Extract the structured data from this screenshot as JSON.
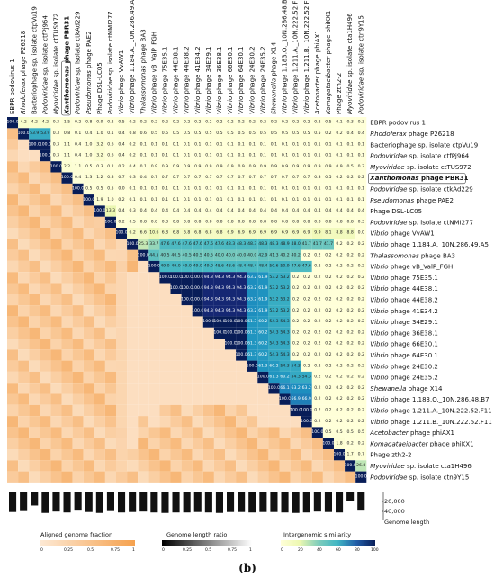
{
  "panel_label": "(b)",
  "legends": {
    "aligned": {
      "title": "Aligned genome fraction",
      "ticks": [
        "0",
        "0.25",
        "0.5",
        "0.75",
        "1"
      ]
    },
    "length_ratio": {
      "title": "Genome length ratio",
      "ticks": [
        "0",
        "0.25",
        "0.5",
        "0.75",
        "1"
      ]
    },
    "intergenomic": {
      "title": "Intergenomic similarity",
      "ticks": [
        "0",
        "20",
        "40",
        "60",
        "80",
        "100"
      ]
    }
  },
  "colors": {
    "orange_low": "#fde9d4",
    "orange_high": "#f5a14e",
    "ylgnbu": [
      "#ffffd9",
      "#edf8b1",
      "#c7e9b4",
      "#7fcdbb",
      "#41b6c4",
      "#1d91c0",
      "#225ea8",
      "#253494",
      "#081d58"
    ]
  },
  "chart_data": {
    "type": "heatmap",
    "genome_length_axis": {
      "label": "Genome length",
      "ticks": [
        "20,000",
        "40,000"
      ]
    },
    "genomes": [
      {
        "prefix": "",
        "italic": "",
        "suffix": "EBPR podovirus 1",
        "boxed": false
      },
      {
        "prefix": "",
        "italic": "Rhodoferax",
        "suffix": " phage P26218",
        "boxed": false
      },
      {
        "prefix": "Bacteriophage sp. isolate ctpVu19",
        "italic": "",
        "suffix": "",
        "boxed": false
      },
      {
        "prefix": "",
        "italic": "Podoviridae",
        "suffix": " sp. isolate ctfPj964",
        "boxed": false
      },
      {
        "prefix": "",
        "italic": "Myoviridae",
        "suffix": " sp. isolate ctTUS972",
        "boxed": false
      },
      {
        "prefix": "",
        "italic": "Xanthomonas",
        "suffix": " phage PBR31",
        "boxed": true
      },
      {
        "prefix": "",
        "italic": "Podoviridae",
        "suffix": " sp. isolate ctkAd229",
        "boxed": false
      },
      {
        "prefix": "",
        "italic": "Pseudomonas",
        "suffix": " phage PAE2",
        "boxed": false
      },
      {
        "prefix": "Phage DSL-LC05",
        "italic": "",
        "suffix": "",
        "boxed": false
      },
      {
        "prefix": "",
        "italic": "Podoviridae",
        "suffix": " sp. isolate ctNMI277",
        "boxed": false
      },
      {
        "prefix": "",
        "italic": "Vibrio",
        "suffix": " phage VvAW1",
        "boxed": false
      },
      {
        "prefix": "",
        "italic": "Vibrio",
        "suffix": " phage 1.184.A._10N.286.49.A5",
        "boxed": false
      },
      {
        "prefix": "",
        "italic": "Thalassomonas",
        "suffix": " phage BA3",
        "boxed": false
      },
      {
        "prefix": "",
        "italic": "Vibrio",
        "suffix": " phage vB_ValP_FGH",
        "boxed": false
      },
      {
        "prefix": "",
        "italic": "Vibrio",
        "suffix": " phage 75E35.1",
        "boxed": false
      },
      {
        "prefix": "",
        "italic": "Vibrio",
        "suffix": " phage 44E38.1",
        "boxed": false
      },
      {
        "prefix": "",
        "italic": "Vibrio",
        "suffix": " phage 44E38.2",
        "boxed": false
      },
      {
        "prefix": "",
        "italic": "Vibrio",
        "suffix": " phage 41E34.2",
        "boxed": false
      },
      {
        "prefix": "",
        "italic": "Vibrio",
        "suffix": " phage 34E29.1",
        "boxed": false
      },
      {
        "prefix": "",
        "italic": "Vibrio",
        "suffix": " phage 36E38.1",
        "boxed": false
      },
      {
        "prefix": "",
        "italic": "Vibrio",
        "suffix": " phage 66E30.1",
        "boxed": false
      },
      {
        "prefix": "",
        "italic": "Vibrio",
        "suffix": " phage 64E30.1",
        "boxed": false
      },
      {
        "prefix": "",
        "italic": "Vibrio",
        "suffix": " phage 24E30.2",
        "boxed": false
      },
      {
        "prefix": "",
        "italic": "Vibrio",
        "suffix": " phage 24E35.2",
        "boxed": false
      },
      {
        "prefix": "",
        "italic": "Shewanella",
        "suffix": " phage X14",
        "boxed": false
      },
      {
        "prefix": "",
        "italic": "Vibrio",
        "suffix": " phage 1.183.O._10N.286.48.B7",
        "boxed": false
      },
      {
        "prefix": "",
        "italic": "Vibrio",
        "suffix": " phage 1.211.A._10N.222.52.F11",
        "boxed": false
      },
      {
        "prefix": "",
        "italic": "Vibrio",
        "suffix": " phage 1.211.B._10N.222.52.F11",
        "boxed": false
      },
      {
        "prefix": "",
        "italic": "Acetobacter",
        "suffix": " phage phiAX1",
        "boxed": false
      },
      {
        "prefix": "",
        "italic": "Komagataeibacter",
        "suffix": " phage phiKX1",
        "boxed": false
      },
      {
        "prefix": "Phage zth2-2",
        "italic": "",
        "suffix": "",
        "boxed": false
      },
      {
        "prefix": "",
        "italic": "Myoviridae",
        "suffix": " sp. isolate cta1H496",
        "boxed": false
      },
      {
        "prefix": "",
        "italic": "Podoviridae",
        "suffix": " sp. isolate ctn9Y15",
        "boxed": false
      }
    ],
    "genome_lengths": [
      42000,
      40000,
      28000,
      44000,
      41000,
      43000,
      39000,
      42000,
      44000,
      40000,
      43000,
      42000,
      41000,
      43000,
      44000,
      43000,
      43000,
      42000,
      43000,
      44000,
      42000,
      42000,
      43000,
      42000,
      42000,
      43000,
      44000,
      43000,
      41000,
      42000,
      43000,
      19000,
      39000
    ],
    "similarity": [
      [
        "100.0",
        "4.2",
        "4.2",
        "4.2",
        "0.3",
        "1.5",
        "0.2",
        "0.8",
        "0.9",
        "0.2",
        "0.5",
        "0.2",
        "0.2",
        "0.2",
        "0.2",
        "0.2",
        "0.2",
        "0.2",
        "0.2",
        "0.2",
        "0.2",
        "0.2",
        "0.2",
        "0.2",
        "0.2",
        "0.2",
        "0.2",
        "0.2",
        "0.2",
        "0.5",
        "0.1",
        "0.3",
        "0.3"
      ],
      [
        "100.0",
        "53.9",
        "53.9",
        "0.3",
        "0.8",
        "0.1",
        "0.4",
        "1.0",
        "0.1",
        "0.4",
        "0.8",
        "0.6",
        "0.5",
        "0.5",
        "0.5",
        "0.5",
        "0.5",
        "0.5",
        "0.5",
        "0.5",
        "0.5",
        "0.5",
        "0.5",
        "0.5",
        "0.5",
        "0.5",
        "0.5",
        "0.5",
        "0.2",
        "0.2",
        "0.4",
        "0.4",
        "0.3"
      ],
      [
        "100.0",
        "100.0",
        "0.3",
        "1.1",
        "0.4",
        "1.0",
        "3.2",
        "0.6",
        "0.4",
        "0.2",
        "0.1",
        "0.1",
        "0.1",
        "0.1",
        "0.1",
        "0.1",
        "0.1",
        "0.1",
        "0.1",
        "0.1",
        "0.1",
        "0.1",
        "0.1",
        "0.1",
        "0.1",
        "0.1",
        "0.1",
        "0.1",
        "0.1",
        "0.1",
        "0.1",
        "0.1"
      ],
      [
        "100.0",
        "0.3",
        "1.1",
        "0.4",
        "1.0",
        "3.2",
        "0.6",
        "0.4",
        "0.2",
        "0.1",
        "0.1",
        "0.1",
        "0.1",
        "0.1",
        "0.1",
        "0.1",
        "0.1",
        "0.1",
        "0.1",
        "0.1",
        "0.1",
        "0.1",
        "0.1",
        "0.1",
        "0.1",
        "0.1",
        "0.1",
        "0.1",
        "0.1",
        "0.1",
        "0.1"
      ],
      [
        "100.0",
        "2.2",
        "1.1",
        "0.5",
        "0.3",
        "0.2",
        "0.2",
        "0.4",
        "0.1",
        "0.9",
        "0.9",
        "0.9",
        "0.9",
        "0.9",
        "0.9",
        "0.9",
        "0.9",
        "0.9",
        "0.9",
        "0.9",
        "0.9",
        "0.9",
        "0.9",
        "0.9",
        "0.9",
        "0.9",
        "0.9",
        "0.5",
        "0.3",
        "0.3",
        "0.2",
        "0.2",
        "0.2"
      ],
      [
        "100.0",
        "0.4",
        "1.3",
        "1.2",
        "0.8",
        "0.7",
        "0.3",
        "0.4",
        "0.7",
        "0.7",
        "0.7",
        "0.7",
        "0.7",
        "0.7",
        "0.7",
        "0.7",
        "0.7",
        "0.7",
        "0.7",
        "0.7",
        "0.7",
        "0.7",
        "0.7",
        "0.3",
        "0.5",
        "0.2",
        "0.2",
        "0.2",
        "0.1",
        "2.8",
        "2.2",
        "0.2"
      ],
      [
        "100.0",
        "0.5",
        "0.5",
        "0.5",
        "0.0",
        "0.1",
        "0.1",
        "0.1",
        "0.1",
        "0.1",
        "0.1",
        "0.1",
        "0.1",
        "0.1",
        "0.1",
        "0.1",
        "0.1",
        "0.1",
        "0.1",
        "0.1",
        "0.1",
        "0.1",
        "0.1",
        "0.1",
        "0.1",
        "0.1",
        "0.1",
        "0.1",
        "0.1",
        "0.1",
        "0.1"
      ],
      [
        "100.0",
        "1.9",
        "1.0",
        "0.2",
        "0.1",
        "0.1",
        "0.1",
        "0.1",
        "0.1",
        "0.1",
        "0.1",
        "0.1",
        "0.1",
        "0.1",
        "0.1",
        "0.1",
        "0.1",
        "0.1",
        "0.1",
        "0.1",
        "0.1",
        "0.1",
        "0.1",
        "0.1",
        "0.1",
        "0.1",
        "1.6",
        "0.9",
        "0.9",
        "0.8",
        "0.8"
      ],
      [
        "100.0",
        "13.3",
        "0.4",
        "0.3",
        "0.4",
        "0.4",
        "0.4",
        "0.4",
        "0.4",
        "0.4",
        "0.4",
        "0.4",
        "0.4",
        "0.4",
        "0.4",
        "0.4",
        "0.4",
        "0.4",
        "0.4",
        "0.4",
        "0.4",
        "0.4",
        "0.4",
        "0.4",
        "0.4",
        "0.4",
        "0.4",
        "0.4",
        "0.4",
        "0.4"
      ],
      [
        "100.0",
        "0.2",
        "0.5",
        "0.8",
        "0.8",
        "0.8",
        "0.8",
        "0.8",
        "0.8",
        "0.8",
        "0.8",
        "0.8",
        "0.8",
        "0.8",
        "0.8",
        "0.8",
        "0.8",
        "0.8",
        "0.8",
        "0.8",
        "0.8",
        "0.8",
        "0.8",
        "0.3",
        "1.2",
        "1.2",
        "0.2",
        "0.2",
        "1.2"
      ],
      [
        "100.0",
        "6.2",
        "6.6",
        "10.6",
        "6.8",
        "6.8",
        "6.8",
        "6.8",
        "6.8",
        "6.8",
        "6.9",
        "6.9",
        "6.9",
        "6.9",
        "6.9",
        "6.9",
        "6.9",
        "6.9",
        "9.9",
        "8.1",
        "8.8",
        "8.8",
        "0.0",
        "0.0",
        "0.0",
        "0.0",
        "0.1",
        "0.0"
      ],
      [
        "100.0",
        "25.3",
        "33.7",
        "47.6",
        "47.6",
        "47.6",
        "47.6",
        "47.6",
        "47.6",
        "48.3",
        "48.3",
        "48.3",
        "48.3",
        "48.3",
        "48.9",
        "48.0",
        "41.7",
        "41.7",
        "41.7",
        "0.2",
        "0.2",
        "0.2",
        "0.2",
        "0.5",
        "0.1",
        "0.1",
        "0.1"
      ],
      [
        "100.0",
        "44.5",
        "40.5",
        "40.5",
        "40.5",
        "40.5",
        "40.5",
        "40.0",
        "40.0",
        "40.0",
        "40.0",
        "42.9",
        "41.3",
        "40.2",
        "40.2",
        "0.2",
        "0.2",
        "0.2",
        "0.2",
        "0.2",
        "0.2",
        "0.2",
        "0.2",
        "0.2",
        "0.2",
        "0.2"
      ],
      [
        "100.0",
        "49.0",
        "49.0",
        "49.0",
        "49.0",
        "49.0",
        "48.6",
        "48.6",
        "48.4",
        "48.4",
        "48.4",
        "50.6",
        "50.9",
        "47.6",
        "47.6",
        "0.2",
        "0.2",
        "0.2",
        "0.2",
        "0.2",
        "0.2",
        "0.2",
        "0.2",
        "0.2",
        "0.2"
      ],
      [
        "100.0",
        "100.0",
        "100.0",
        "100.0",
        "94.3",
        "94.3",
        "94.3",
        "94.3",
        "63.2",
        "61.9",
        "53.2",
        "53.2",
        "0.2",
        "0.2",
        "0.2",
        "0.2",
        "0.2",
        "0.2",
        "0.2",
        "0.2",
        "0.2",
        "0.2",
        "0.2",
        "0.2"
      ],
      [
        "100.0",
        "100.0",
        "100.0",
        "94.3",
        "94.3",
        "94.3",
        "94.3",
        "63.2",
        "61.9",
        "53.2",
        "53.2",
        "0.2",
        "0.2",
        "0.2",
        "0.2",
        "0.2",
        "0.2",
        "0.2",
        "0.2",
        "0.2",
        "0.2",
        "0.2",
        "0.2"
      ],
      [
        "100.0",
        "100.0",
        "94.3",
        "94.3",
        "94.3",
        "94.3",
        "63.2",
        "61.9",
        "53.2",
        "53.2",
        "0.2",
        "0.2",
        "0.2",
        "0.2",
        "0.2",
        "0.2",
        "0.2",
        "0.2",
        "0.2",
        "0.2",
        "0.2",
        "0.2"
      ],
      [
        "100.0",
        "94.3",
        "94.3",
        "94.3",
        "94.3",
        "63.2",
        "61.9",
        "53.2",
        "53.2",
        "0.2",
        "0.2",
        "0.2",
        "0.2",
        "0.2",
        "0.2",
        "0.2",
        "0.2",
        "0.2",
        "0.2",
        "0.2",
        "0.2"
      ],
      [
        "100.0",
        "100.0",
        "100.0",
        "100.0",
        "61.3",
        "60.2",
        "54.3",
        "54.3",
        "0.2",
        "0.2",
        "0.2",
        "0.2",
        "0.2",
        "0.2",
        "0.2",
        "0.2",
        "0.2",
        "0.2",
        "0.2",
        "0.2"
      ],
      [
        "100.0",
        "100.0",
        "100.0",
        "61.3",
        "60.2",
        "54.3",
        "54.3",
        "0.2",
        "0.2",
        "0.2",
        "0.2",
        "0.2",
        "0.2",
        "0.2",
        "0.2",
        "0.2",
        "0.2",
        "0.2",
        "0.2"
      ],
      [
        "100.0",
        "100.0",
        "61.3",
        "60.2",
        "54.3",
        "54.3",
        "0.2",
        "0.2",
        "0.2",
        "0.2",
        "0.2",
        "0.2",
        "0.2",
        "0.2",
        "0.2",
        "0.2",
        "0.2",
        "0.2"
      ],
      [
        "100.0",
        "61.3",
        "60.2",
        "54.3",
        "54.3",
        "0.2",
        "0.2",
        "0.2",
        "0.2",
        "0.2",
        "0.2",
        "0.2",
        "0.2",
        "0.2",
        "0.2",
        "0.2",
        "0.2"
      ],
      [
        "100.0",
        "61.3",
        "60.2",
        "54.3",
        "54.3",
        "0.2",
        "0.2",
        "0.2",
        "0.2",
        "0.2",
        "0.2",
        "0.2",
        "0.2",
        "0.2",
        "0.2",
        "0.2"
      ],
      [
        "100.0",
        "61.3",
        "60.2",
        "54.3",
        "54.3",
        "0.2",
        "0.2",
        "0.2",
        "0.2",
        "0.2",
        "0.2",
        "0.2",
        "0.2",
        "0.2",
        "0.2"
      ],
      [
        "100.0",
        "66.1",
        "63.2",
        "63.2",
        "0.2",
        "0.2",
        "0.2",
        "0.2",
        "0.2",
        "0.2",
        "0.2",
        "0.2",
        "0.2",
        "0.2"
      ],
      [
        "100.0",
        "66.9",
        "66.9",
        "0.2",
        "0.2",
        "0.2",
        "0.2",
        "0.2",
        "0.2",
        "0.2",
        "0.2",
        "0.2",
        "0.2"
      ],
      [
        "100.0",
        "100.0",
        "0.2",
        "0.2",
        "0.2",
        "0.2",
        "0.2",
        "0.2",
        "0.2",
        "0.2",
        "0.2",
        "0.2"
      ],
      [
        "100.0",
        "0.2",
        "0.2",
        "0.2",
        "0.2",
        "0.2",
        "0.2",
        "0.2",
        "0.2",
        "0.2",
        "0.2"
      ],
      [
        "100.0",
        "0.5",
        "0.5",
        "0.5",
        "0.5",
        "0.5",
        "0.5",
        "0.5",
        "0.5",
        "0.5"
      ],
      [
        "100.0",
        "1.8",
        "0.2",
        "0.2",
        "0.2",
        "0.2",
        "0.2",
        "0.2",
        "0.2"
      ],
      [
        "100.0",
        "1.7",
        "0.7",
        "0.7",
        "0.7",
        "0.7",
        "0.7",
        "0.7"
      ],
      [
        "100.0",
        "26.8",
        "26.8",
        "26.8",
        "26.8",
        "26.8",
        "26.8"
      ],
      [
        "100.0",
        "100.0",
        "100.0",
        "100.0",
        "100.0",
        "100.0"
      ]
    ]
  }
}
